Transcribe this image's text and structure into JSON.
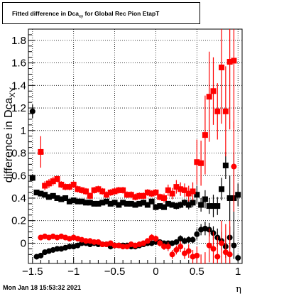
{
  "title": {
    "main": "Fitted difference in Dca",
    "sub": "xy",
    "rest": " for Global Rec Pion EtapT"
  },
  "timestamp": "Mon Jan 18 15:53:32 2021",
  "chart_data": {
    "type": "scatter",
    "title": "Fitted difference in Dca_xy for Global Rec Pion EtapT",
    "ylabel_main": "difference in Dca",
    "ylabel_sub": "XY",
    "xlabel": "η",
    "xlim": [
      -1.55,
      1.05
    ],
    "ylim": [
      -0.18,
      1.9
    ],
    "xticks": [
      -1.5,
      -1,
      -0.5,
      0,
      0.5,
      1
    ],
    "xtick_labels": [
      "−1.5",
      "−1",
      "−0.5",
      "0",
      "0.5",
      "1"
    ],
    "yticks": [
      0,
      0.2,
      0.4,
      0.6,
      0.8,
      1,
      1.2,
      1.4,
      1.6,
      1.8
    ],
    "ytick_labels": [
      "0",
      "0.2",
      "0.4",
      "0.6",
      "0.8",
      "1",
      "1.2",
      "1.4",
      "1.6",
      "1.8"
    ],
    "grid": true,
    "colors": {
      "black": "#000000",
      "red": "#ff0000"
    },
    "series": [
      {
        "marker": "square",
        "color": "#000000",
        "x": [
          -1.5,
          -1.45,
          -1.4,
          -1.35,
          -1.3,
          -1.25,
          -1.2,
          -1.15,
          -1.1,
          -1.05,
          -1.0,
          -0.95,
          -0.9,
          -0.85,
          -0.8,
          -0.75,
          -0.7,
          -0.65,
          -0.6,
          -0.55,
          -0.5,
          -0.45,
          -0.4,
          -0.35,
          -0.3,
          -0.25,
          -0.2,
          -0.15,
          -0.1,
          -0.05,
          0.0,
          0.05,
          0.1,
          0.15,
          0.2,
          0.25,
          0.3,
          0.35,
          0.4,
          0.45,
          0.5,
          0.55,
          0.6,
          0.65,
          0.7,
          0.75,
          0.8,
          0.85,
          0.9,
          0.95,
          1.0
        ],
        "y": [
          0.58,
          0.45,
          0.44,
          0.43,
          0.41,
          0.42,
          0.4,
          0.39,
          0.4,
          0.37,
          0.38,
          0.37,
          0.37,
          0.36,
          0.36,
          0.35,
          0.35,
          0.36,
          0.37,
          0.35,
          0.36,
          0.34,
          0.36,
          0.35,
          0.35,
          0.34,
          0.35,
          0.36,
          0.34,
          0.37,
          0.32,
          0.33,
          0.32,
          0.35,
          0.34,
          0.33,
          0.34,
          0.36,
          0.34,
          0.36,
          0.43,
          0.34,
          0.39,
          0.33,
          0.33,
          0.33,
          0.48,
          0.69,
          0.4,
          0.4,
          0.43
        ],
        "yerr": [
          0.03,
          0.02,
          0.02,
          0.02,
          0.02,
          0.02,
          0.02,
          0.02,
          0.02,
          0.02,
          0.02,
          0.02,
          0.02,
          0.02,
          0.02,
          0.02,
          0.02,
          0.02,
          0.02,
          0.02,
          0.02,
          0.02,
          0.02,
          0.02,
          0.02,
          0.02,
          0.02,
          0.02,
          0.02,
          0.02,
          0.02,
          0.02,
          0.02,
          0.02,
          0.02,
          0.03,
          0.03,
          0.03,
          0.04,
          0.04,
          0.08,
          0.06,
          0.08,
          0.07,
          0.1,
          0.08,
          0.1,
          0.12,
          0.2,
          0.4,
          0.1
        ]
      },
      {
        "marker": "square",
        "color": "#ff0000",
        "x": [
          -1.4,
          -1.35,
          -1.3,
          -1.25,
          -1.2,
          -1.15,
          -1.1,
          -1.05,
          -1.0,
          -0.95,
          -0.9,
          -0.85,
          -0.8,
          -0.75,
          -0.7,
          -0.65,
          -0.6,
          -0.55,
          -0.5,
          -0.45,
          -0.4,
          -0.35,
          -0.3,
          -0.25,
          -0.2,
          -0.15,
          -0.1,
          -0.05,
          0.0,
          0.05,
          0.1,
          0.15,
          0.2,
          0.25,
          0.3,
          0.35,
          0.4,
          0.45,
          0.5,
          0.55,
          0.6,
          0.65,
          0.7,
          0.75,
          0.8,
          0.85,
          0.9,
          0.95
        ],
        "y": [
          0.81,
          0.51,
          0.53,
          0.55,
          0.57,
          0.52,
          0.5,
          0.5,
          0.52,
          0.48,
          0.47,
          0.46,
          0.42,
          0.47,
          0.48,
          0.46,
          0.43,
          0.45,
          0.46,
          0.47,
          0.47,
          0.43,
          0.43,
          0.41,
          0.42,
          0.42,
          0.45,
          0.44,
          0.45,
          0.41,
          0.4,
          0.47,
          0.44,
          0.5,
          0.48,
          0.47,
          0.44,
          0.46,
          0.72,
          0.71,
          0.96,
          1.3,
          1.35,
          1.17,
          1.56,
          1.17,
          1.61,
          1.62
        ],
        "yerr": [
          0.14,
          0.04,
          0.04,
          0.04,
          0.03,
          0.03,
          0.03,
          0.03,
          0.03,
          0.03,
          0.03,
          0.03,
          0.03,
          0.03,
          0.03,
          0.03,
          0.03,
          0.03,
          0.03,
          0.03,
          0.03,
          0.03,
          0.03,
          0.03,
          0.03,
          0.03,
          0.03,
          0.03,
          0.03,
          0.03,
          0.04,
          0.05,
          0.05,
          0.06,
          0.06,
          0.06,
          0.07,
          0.08,
          0.2,
          0.2,
          0.35,
          0.4,
          0.3,
          0.25,
          0.5,
          0.4,
          0.6,
          0.6
        ]
      },
      {
        "marker": "circle",
        "color": "#000000",
        "x": [
          -1.5,
          -1.45,
          -1.4,
          -1.35,
          -1.3,
          -1.25,
          -1.2,
          -1.15,
          -1.1,
          -1.05,
          -1.0,
          -0.95,
          -0.9,
          -0.85,
          -0.8,
          -0.75,
          -0.7,
          -0.65,
          -0.6,
          -0.55,
          -0.5,
          -0.45,
          -0.4,
          -0.35,
          -0.3,
          -0.25,
          -0.2,
          -0.15,
          -0.1,
          -0.05,
          0.0,
          0.05,
          0.1,
          0.15,
          0.2,
          0.25,
          0.3,
          0.35,
          0.4,
          0.45,
          0.5,
          0.55,
          0.6,
          0.65,
          0.7,
          0.75,
          0.8,
          0.85,
          0.9,
          0.95,
          1.0
        ],
        "y": [
          1.17,
          -0.12,
          -0.11,
          -0.08,
          -0.07,
          -0.06,
          -0.05,
          -0.05,
          -0.04,
          -0.03,
          -0.03,
          -0.02,
          0.0,
          0.0,
          -0.01,
          0.0,
          -0.01,
          -0.01,
          -0.01,
          -0.03,
          -0.02,
          -0.02,
          -0.02,
          -0.02,
          -0.03,
          -0.03,
          -0.02,
          -0.01,
          0.0,
          0.0,
          0.01,
          0.01,
          0.0,
          0.0,
          0.0,
          0.01,
          0.04,
          0.02,
          0.03,
          0.03,
          0.08,
          0.12,
          0.13,
          0.12,
          0.09,
          0.05,
          0.02,
          -0.03,
          0.05,
          -0.02,
          -0.13
        ],
        "yerr": [
          0.06,
          0.02,
          0.02,
          0.02,
          0.02,
          0.02,
          0.02,
          0.02,
          0.02,
          0.02,
          0.02,
          0.02,
          0.02,
          0.02,
          0.02,
          0.02,
          0.02,
          0.02,
          0.02,
          0.02,
          0.02,
          0.02,
          0.02,
          0.02,
          0.02,
          0.02,
          0.02,
          0.02,
          0.02,
          0.02,
          0.02,
          0.02,
          0.02,
          0.02,
          0.02,
          0.02,
          0.03,
          0.03,
          0.03,
          0.03,
          0.05,
          0.05,
          0.06,
          0.06,
          0.06,
          0.08,
          0.08,
          0.1,
          0.1,
          0.12,
          0.03
        ]
      },
      {
        "marker": "circle",
        "color": "#ff0000",
        "x": [
          -1.4,
          -1.35,
          -1.3,
          -1.25,
          -1.2,
          -1.15,
          -1.1,
          -1.05,
          -1.0,
          -0.95,
          -0.9,
          -0.85,
          -0.8,
          -0.75,
          -0.7,
          -0.65,
          -0.6,
          -0.55,
          -0.5,
          -0.45,
          -0.4,
          -0.35,
          -0.3,
          -0.25,
          -0.2,
          -0.15,
          -0.1,
          -0.05,
          0.0,
          0.05,
          0.1,
          0.15,
          0.2,
          0.25,
          0.3,
          0.35,
          0.4,
          0.45,
          0.5,
          0.55,
          0.6,
          0.65,
          0.7,
          0.75,
          0.8,
          0.85,
          0.9,
          0.95
        ],
        "y": [
          0.05,
          0.06,
          0.05,
          0.06,
          0.05,
          0.06,
          0.05,
          0.04,
          0.05,
          0.04,
          0.03,
          0.02,
          0.02,
          0.01,
          0.01,
          -0.01,
          -0.01,
          0.0,
          -0.02,
          -0.02,
          -0.03,
          -0.03,
          -0.01,
          -0.02,
          -0.01,
          0.0,
          0.02,
          0.05,
          0.04,
          0.0,
          -0.03,
          -0.03,
          -0.1,
          -0.06,
          -0.03,
          -0.09,
          -0.07,
          -0.12,
          -0.11,
          -0.2,
          -0.2,
          -0.02,
          -0.05,
          -0.12,
          0.0,
          -0.08,
          -0.1,
          0.68
        ],
        "yerr": [
          0.02,
          0.02,
          0.02,
          0.02,
          0.02,
          0.02,
          0.02,
          0.02,
          0.02,
          0.02,
          0.02,
          0.02,
          0.02,
          0.02,
          0.02,
          0.02,
          0.02,
          0.02,
          0.02,
          0.02,
          0.02,
          0.02,
          0.02,
          0.02,
          0.02,
          0.02,
          0.02,
          0.03,
          0.03,
          0.03,
          0.03,
          0.04,
          0.04,
          0.04,
          0.05,
          0.05,
          0.06,
          0.06,
          0.08,
          0.1,
          0.12,
          0.15,
          0.15,
          0.18,
          0.2,
          0.25,
          0.3,
          0.4
        ]
      }
    ]
  }
}
